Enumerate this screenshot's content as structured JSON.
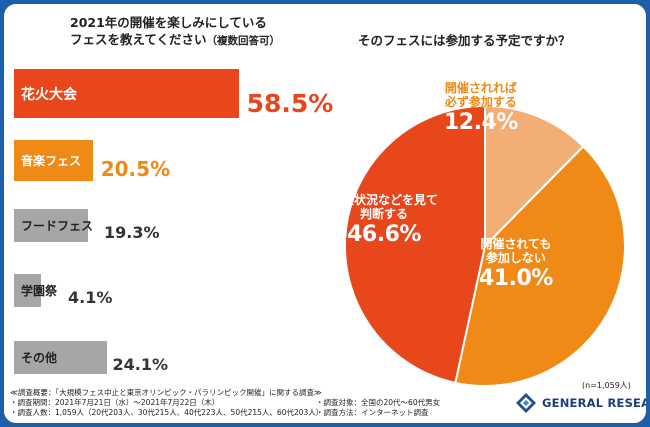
{
  "left_title": [
    "2021年の開催を楽しみにしている",
    "フェスを教えてください"
  ],
  "left_title_suffix": "（複数回答可）",
  "right_title": "そのフェスには参加する予定ですか？",
  "note": "(n=1,059人)",
  "footer": {
    "lines_left": [
      "≪調査概要：「大規模フェス中止と東京オリンピック・パラリンピック開催」に関する調査≫",
      "・調査期間：2021年7月21日（水）～2021年7月22日（木）",
      "・調査人数：1,059人（20代203人、30代215人、40代223人、50代215人、60代203人）"
    ],
    "lines_right": [
      "・調査対象：全国の20代～60代男女",
      "・調査方法：インターネット調査"
    ]
  },
  "logo": {
    "text": "GENERAL RESEARCH"
  },
  "colors": {
    "frame": "#1d5fa8",
    "red": "#e8461b",
    "orange": "#f08a16",
    "gray": "#a6a6a6",
    "peach": "#f3ae76",
    "text_dark": "#333333"
  },
  "chart_data": [
    {
      "type": "bar",
      "orientation": "horizontal",
      "categories": [
        "花火大会",
        "音楽フェス",
        "フードフェス",
        "学園祭",
        "その他"
      ],
      "values": [
        58.5,
        20.5,
        19.3,
        4.1,
        24.1
      ],
      "value_labels": [
        "58.5%",
        "20.5%",
        "19.3%",
        "4.1%",
        "24.1%"
      ],
      "bar_colors": [
        "#e8461b",
        "#f08a16",
        "#a6a6a6",
        "#a6a6a6",
        "#a6a6a6"
      ],
      "xlim": [
        0,
        60
      ]
    },
    {
      "type": "pie",
      "slices": [
        {
          "label": [
            "開催されれば",
            "必ず参加する"
          ],
          "value": 12.4,
          "value_label": "12.4%",
          "color": "#f3ae76"
        },
        {
          "label": [
            "開催されても",
            "参加しない"
          ],
          "value": 41.0,
          "value_label": "41.0%",
          "color": "#f08a16"
        },
        {
          "label": [
            "感染状況などを見て",
            "判断する"
          ],
          "value": 46.6,
          "value_label": "46.6%",
          "color": "#e8461b"
        }
      ]
    }
  ]
}
